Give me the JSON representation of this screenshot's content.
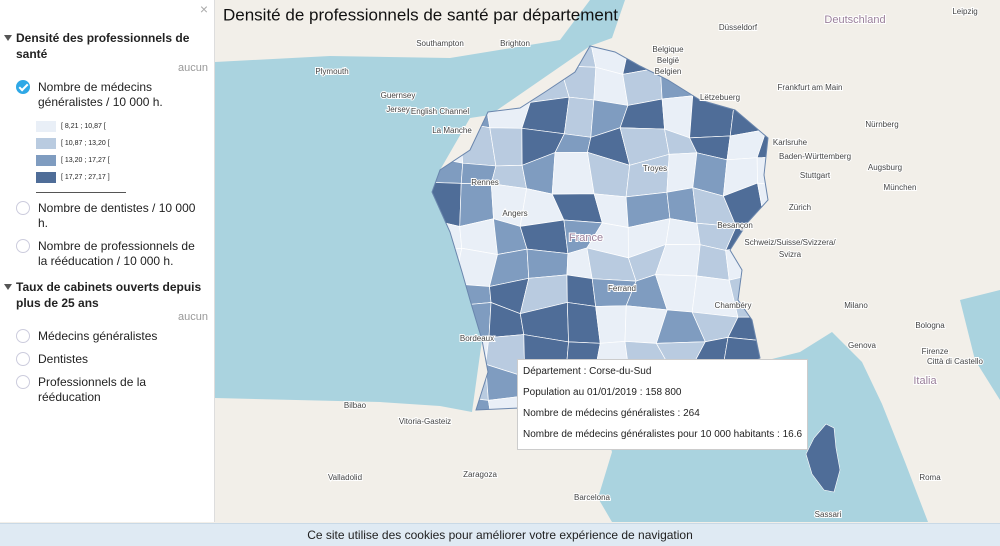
{
  "title": "Densité de professionnels de santé par département",
  "sidebar": {
    "sections": [
      {
        "title": "Densité des professionnels de santé",
        "reset": "aucun",
        "items": [
          {
            "label": "Nombre de médecins généralistes / 10 000 h.",
            "selected": true,
            "legend": [
              {
                "label": "[ 8,21 ; 10,87 [",
                "color": "#e9eff7"
              },
              {
                "label": "[ 10,87 ; 13,20 [",
                "color": "#b9cbe0"
              },
              {
                "label": "[ 13,20 ; 17,27 [",
                "color": "#7f9cc0"
              },
              {
                "label": "[ 17,27 ; 27,17 ]",
                "color": "#4f6d98"
              }
            ]
          },
          {
            "label": "Nombre de dentistes / 10 000 h.",
            "selected": false
          },
          {
            "label": "Nombre de professionnels de la rééducation / 10 000 h.",
            "selected": false
          }
        ]
      },
      {
        "title": "Taux de cabinets ouverts depuis plus de 25 ans",
        "reset": "aucun",
        "items": [
          {
            "label": "Médecins généralistes",
            "selected": false
          },
          {
            "label": "Dentistes",
            "selected": false
          },
          {
            "label": "Professionnels de la rééducation",
            "selected": false
          }
        ]
      }
    ]
  },
  "tooltip": {
    "lines": [
      "Département : Corse-du-Sud",
      "Population au 01/01/2019 : 158 800",
      "Nombre de médecins généralistes : 264",
      "Nombre de médecins généralistes pour 10 000 habitants : 16.6"
    ]
  },
  "map_labels": [
    "Southampton",
    "Brighton",
    "Plymouth",
    "English Channel",
    "La Manche",
    "Guernsey",
    "Jersey",
    "Düsseldorf",
    "Deutschland",
    "Belgique",
    "België",
    "Belgien",
    "Lëtzebuerg",
    "Frankfurt am Main",
    "Nürnberg",
    "Baden-Württemberg",
    "Karlsruhe",
    "Stuttgart",
    "Augsburg",
    "München",
    "Leipzig",
    "Rennes",
    "Angers",
    "Troyes",
    "France",
    "Besançon",
    "Ferrand",
    "Chambéry",
    "Bordeaux",
    "Zürich",
    "Schweiz/Suisse/Svizzera/",
    "Svizra",
    "Milano",
    "Genova",
    "Bologna",
    "Firenze",
    "Italia",
    "Città di Castello",
    "Roma",
    "Bilbao",
    "Vitoria-Gasteiz",
    "Valladolid",
    "Zaragoza",
    "Barcelona",
    "Sassari"
  ],
  "cookie_banner": "Ce site utilise des cookies pour améliorer votre expérience de navigation"
}
